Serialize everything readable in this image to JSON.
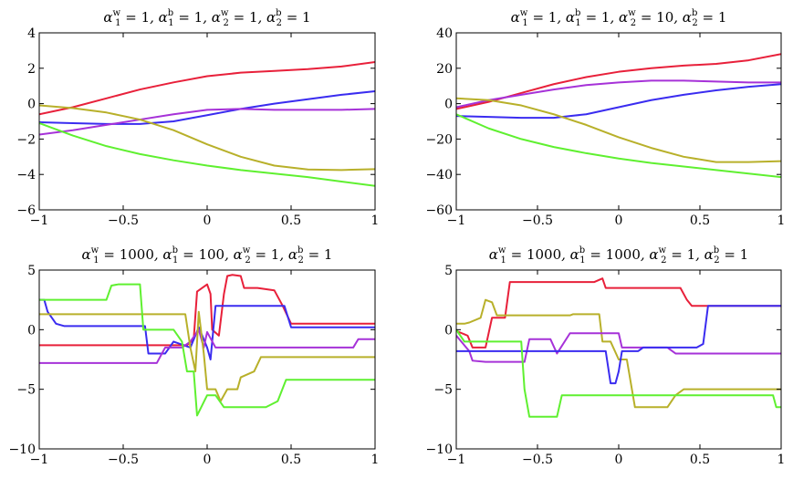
{
  "figure_caption": "",
  "chart_data": [
    {
      "type": "line",
      "title": "α1w = 1, α1b = 1, α2w = 1, α2b = 1",
      "title_parts": {
        "a1w": "1",
        "a1b": "1",
        "a2w": "1",
        "a2b": "1"
      },
      "xlim": [
        -1,
        1
      ],
      "ylim": [
        -6,
        4
      ],
      "xticks": [
        -1,
        -0.5,
        0,
        0.5,
        1
      ],
      "xtick_labels": [
        "−1",
        "−0.5",
        "0",
        "0.5",
        "1"
      ],
      "yticks": [
        -6,
        -4,
        -2,
        0,
        2,
        4
      ],
      "ytick_labels": [
        "−6",
        "−4",
        "−2",
        "0",
        "2",
        "4"
      ],
      "series": [
        {
          "name": "red",
          "color": "#e8203a",
          "x": [
            -1,
            -0.8,
            -0.6,
            -0.4,
            -0.2,
            0,
            0.2,
            0.4,
            0.6,
            0.8,
            1
          ],
          "y": [
            -0.6,
            -0.2,
            0.3,
            0.8,
            1.2,
            1.55,
            1.75,
            1.85,
            1.95,
            2.1,
            2.35
          ]
        },
        {
          "name": "blue",
          "color": "#3a2cf0",
          "x": [
            -1,
            -0.8,
            -0.6,
            -0.4,
            -0.2,
            0,
            0.2,
            0.4,
            0.6,
            0.8,
            1
          ],
          "y": [
            -1.05,
            -1.1,
            -1.15,
            -1.15,
            -1.0,
            -0.65,
            -0.3,
            0.0,
            0.25,
            0.5,
            0.7
          ]
        },
        {
          "name": "magenta",
          "color": "#a632d8",
          "x": [
            -1,
            -0.8,
            -0.6,
            -0.4,
            -0.2,
            0,
            0.2,
            0.4,
            0.6,
            0.8,
            1
          ],
          "y": [
            -1.75,
            -1.5,
            -1.2,
            -0.9,
            -0.6,
            -0.35,
            -0.3,
            -0.35,
            -0.35,
            -0.35,
            -0.3
          ]
        },
        {
          "name": "olive",
          "color": "#b8b02a",
          "x": [
            -1,
            -0.8,
            -0.6,
            -0.4,
            -0.2,
            0,
            0.2,
            0.4,
            0.6,
            0.8,
            1
          ],
          "y": [
            -0.1,
            -0.25,
            -0.5,
            -0.9,
            -1.5,
            -2.3,
            -3.0,
            -3.5,
            -3.72,
            -3.75,
            -3.7
          ]
        },
        {
          "name": "green",
          "color": "#5ff030",
          "x": [
            -1,
            -0.8,
            -0.6,
            -0.4,
            -0.2,
            0,
            0.2,
            0.4,
            0.6,
            0.8,
            1
          ],
          "y": [
            -1.1,
            -1.8,
            -2.4,
            -2.85,
            -3.2,
            -3.5,
            -3.75,
            -3.95,
            -4.15,
            -4.4,
            -4.65
          ]
        }
      ]
    },
    {
      "type": "line",
      "title": "α1w = 1, α1b = 1, α2w = 10, α2b = 1",
      "title_parts": {
        "a1w": "1",
        "a1b": "1",
        "a2w": "10",
        "a2b": "1"
      },
      "xlim": [
        -1,
        1
      ],
      "ylim": [
        -60,
        40
      ],
      "xticks": [
        -1,
        -0.5,
        0,
        0.5,
        1
      ],
      "xtick_labels": [
        "−1",
        "−0.5",
        "0",
        "0.5",
        "1"
      ],
      "yticks": [
        -60,
        -40,
        -20,
        0,
        20,
        40
      ],
      "ytick_labels": [
        "−60",
        "−40",
        "−20",
        "0",
        "20",
        "40"
      ],
      "series": [
        {
          "name": "red",
          "color": "#e8203a",
          "x": [
            -1,
            -0.8,
            -0.6,
            -0.4,
            -0.2,
            0,
            0.2,
            0.4,
            0.6,
            0.8,
            1
          ],
          "y": [
            -3,
            1,
            6,
            11,
            15,
            18,
            20,
            21.5,
            22.5,
            24.5,
            28
          ]
        },
        {
          "name": "magenta",
          "color": "#a632d8",
          "x": [
            -1,
            -0.8,
            -0.6,
            -0.4,
            -0.2,
            0,
            0.2,
            0.4,
            0.6,
            0.8,
            1
          ],
          "y": [
            -2,
            2,
            5,
            8,
            10.5,
            12,
            13,
            13,
            12.5,
            12,
            12
          ]
        },
        {
          "name": "blue",
          "color": "#3a2cf0",
          "x": [
            -1,
            -0.8,
            -0.6,
            -0.4,
            -0.2,
            0,
            0.2,
            0.4,
            0.6,
            0.8,
            1
          ],
          "y": [
            -7,
            -7.5,
            -8,
            -8,
            -6,
            -2,
            2,
            5,
            7.5,
            9.5,
            11
          ]
        },
        {
          "name": "olive",
          "color": "#b8b02a",
          "x": [
            -1,
            -0.8,
            -0.6,
            -0.4,
            -0.2,
            0,
            0.2,
            0.4,
            0.6,
            0.8,
            1
          ],
          "y": [
            3,
            2,
            -1,
            -6,
            -12,
            -19,
            -25,
            -30,
            -33,
            -33,
            -32.5
          ]
        },
        {
          "name": "green",
          "color": "#5ff030",
          "x": [
            -1,
            -0.8,
            -0.6,
            -0.4,
            -0.2,
            0,
            0.2,
            0.4,
            0.6,
            0.8,
            1
          ],
          "y": [
            -6,
            -14,
            -20,
            -24.5,
            -28,
            -31,
            -33.5,
            -35.5,
            -37.5,
            -39.5,
            -41.5
          ]
        }
      ]
    },
    {
      "type": "line",
      "title": "α1w = 1000, α1b = 100, α2w = 1, α2b = 1",
      "title_parts": {
        "a1w": "1000",
        "a1b": "100",
        "a2w": "1",
        "a2b": "1"
      },
      "xlim": [
        -1,
        1
      ],
      "ylim": [
        -10,
        5
      ],
      "xticks": [
        -1,
        -0.5,
        0,
        0.5,
        1
      ],
      "xtick_labels": [
        "−1",
        "−0.5",
        "0",
        "0.5",
        "1"
      ],
      "yticks": [
        -10,
        -5,
        0,
        5
      ],
      "ytick_labels": [
        "−10",
        "−5",
        "0",
        "5"
      ],
      "series": [
        {
          "name": "red",
          "color": "#e8203a",
          "x": [
            -1,
            -0.5,
            -0.12,
            -0.08,
            -0.06,
            0.0,
            0.02,
            0.03,
            0.07,
            0.1,
            0.12,
            0.15,
            0.2,
            0.22,
            0.3,
            0.4,
            0.45,
            0.5,
            1.0
          ],
          "y": [
            -1.3,
            -1.3,
            -1.3,
            -0.8,
            3.2,
            3.8,
            3.0,
            0.0,
            -0.5,
            3.0,
            4.5,
            4.6,
            4.5,
            3.5,
            3.5,
            3.3,
            2.0,
            0.5,
            0.5
          ]
        },
        {
          "name": "blue",
          "color": "#3a2cf0",
          "x": [
            -1,
            -0.97,
            -0.95,
            -0.9,
            -0.85,
            -0.37,
            -0.35,
            -0.25,
            -0.2,
            -0.1,
            -0.05,
            0.0,
            0.02,
            0.05,
            0.46,
            0.5,
            0.95,
            1.0
          ],
          "y": [
            2.5,
            2.5,
            1.5,
            0.5,
            0.3,
            0.3,
            -2.0,
            -2.0,
            -1.0,
            -1.5,
            0.2,
            -1.5,
            -2.5,
            2.0,
            2.0,
            0.2,
            0.2,
            0.2
          ]
        },
        {
          "name": "magenta",
          "color": "#a632d8",
          "x": [
            -1,
            -0.75,
            -0.3,
            -0.25,
            -0.15,
            -0.1,
            -0.05,
            -0.02,
            0.0,
            0.05,
            0.1,
            0.35,
            0.87,
            0.9,
            1.0
          ],
          "y": [
            -2.8,
            -2.8,
            -2.8,
            -1.5,
            -1.5,
            -1.0,
            0.0,
            -1.5,
            -0.2,
            -1.5,
            -1.5,
            -1.5,
            -1.5,
            -0.8,
            -0.8
          ]
        },
        {
          "name": "olive",
          "color": "#b8b02a",
          "x": [
            -1,
            -0.3,
            -0.25,
            -0.13,
            -0.1,
            -0.07,
            -0.05,
            -0.02,
            0.0,
            0.05,
            0.08,
            0.12,
            0.18,
            0.2,
            0.28,
            0.32,
            0.6,
            1.0
          ],
          "y": [
            1.3,
            1.3,
            1.3,
            1.3,
            -1.5,
            -3.5,
            1.5,
            -2.0,
            -5.0,
            -5.0,
            -6.0,
            -5.0,
            -5.0,
            -4.0,
            -3.5,
            -2.3,
            -2.3,
            -2.3
          ]
        },
        {
          "name": "green",
          "color": "#5ff030",
          "x": [
            -1,
            -0.6,
            -0.57,
            -0.53,
            -0.4,
            -0.38,
            -0.2,
            -0.15,
            -0.12,
            -0.08,
            -0.06,
            0.0,
            0.05,
            0.1,
            0.2,
            0.35,
            0.42,
            0.47,
            1.0
          ],
          "y": [
            2.5,
            2.5,
            3.7,
            3.8,
            3.8,
            0.0,
            0.0,
            -1.0,
            -3.5,
            -3.5,
            -7.2,
            -5.5,
            -5.5,
            -6.5,
            -6.5,
            -6.5,
            -6.0,
            -4.2,
            -4.2
          ]
        }
      ]
    },
    {
      "type": "line",
      "title": "α1w = 1000, α1b = 1000, α2w = 1, α2b = 1",
      "title_parts": {
        "a1w": "1000",
        "a1b": "1000",
        "a2w": "1",
        "a2b": "1"
      },
      "xlim": [
        -1,
        1
      ],
      "ylim": [
        -10,
        5
      ],
      "xticks": [
        -1,
        -0.5,
        0,
        0.5,
        1
      ],
      "xtick_labels": [
        "−1",
        "−0.5",
        "0",
        "0.5",
        "1"
      ],
      "yticks": [
        -10,
        -5,
        0,
        5
      ],
      "ytick_labels": [
        "−10",
        "−5",
        "0",
        "5"
      ],
      "series": [
        {
          "name": "red",
          "color": "#e8203a",
          "x": [
            -1,
            -0.93,
            -0.9,
            -0.82,
            -0.78,
            -0.7,
            -0.67,
            -0.6,
            -0.15,
            -0.1,
            -0.08,
            0.38,
            0.42,
            0.45,
            0.95,
            1.0
          ],
          "y": [
            -0.1,
            -0.5,
            -1.5,
            -1.5,
            1.0,
            1.0,
            4.0,
            4.0,
            4.0,
            4.3,
            3.5,
            3.5,
            2.5,
            2.0,
            2.0,
            2.0
          ]
        },
        {
          "name": "olive",
          "color": "#b8b02a",
          "x": [
            -1,
            -0.95,
            -0.92,
            -0.85,
            -0.82,
            -0.78,
            -0.75,
            -0.7,
            -0.3,
            -0.28,
            -0.12,
            -0.1,
            -0.05,
            0.0,
            0.05,
            0.1,
            0.3,
            0.35,
            0.4,
            0.95,
            1.0
          ],
          "y": [
            0.5,
            0.5,
            0.6,
            1.0,
            2.5,
            2.3,
            1.2,
            1.2,
            1.2,
            1.3,
            1.3,
            -1.0,
            -1.0,
            -2.5,
            -2.5,
            -6.5,
            -6.5,
            -5.5,
            -5.0,
            -5.0,
            -5.0
          ]
        },
        {
          "name": "magenta",
          "color": "#a632d8",
          "x": [
            -1,
            -0.92,
            -0.9,
            -0.82,
            -0.58,
            -0.55,
            -0.42,
            -0.38,
            -0.3,
            -0.25,
            -0.15,
            0.0,
            0.02,
            0.3,
            0.35,
            1.0
          ],
          "y": [
            -0.5,
            -1.8,
            -2.6,
            -2.7,
            -2.7,
            -0.8,
            -0.8,
            -2.0,
            -0.3,
            -0.3,
            -0.3,
            -0.3,
            -1.5,
            -1.5,
            -2.0,
            -2.0
          ]
        },
        {
          "name": "blue",
          "color": "#3a2cf0",
          "x": [
            -1,
            -0.5,
            -0.08,
            -0.05,
            -0.02,
            0.0,
            0.02,
            0.12,
            0.15,
            0.48,
            0.52,
            0.55,
            1.0
          ],
          "y": [
            -1.8,
            -1.8,
            -1.8,
            -4.5,
            -4.5,
            -3.5,
            -1.8,
            -1.8,
            -1.5,
            -1.5,
            -1.2,
            2.0,
            2.0
          ]
        },
        {
          "name": "green",
          "color": "#5ff030",
          "x": [
            -1,
            -0.95,
            -0.9,
            -0.6,
            -0.58,
            -0.55,
            -0.38,
            -0.35,
            0.95,
            0.97,
            1.0
          ],
          "y": [
            0.0,
            -1.0,
            -1.0,
            -1.0,
            -5.0,
            -7.3,
            -7.3,
            -5.5,
            -5.5,
            -6.5,
            -6.5
          ]
        }
      ]
    }
  ]
}
